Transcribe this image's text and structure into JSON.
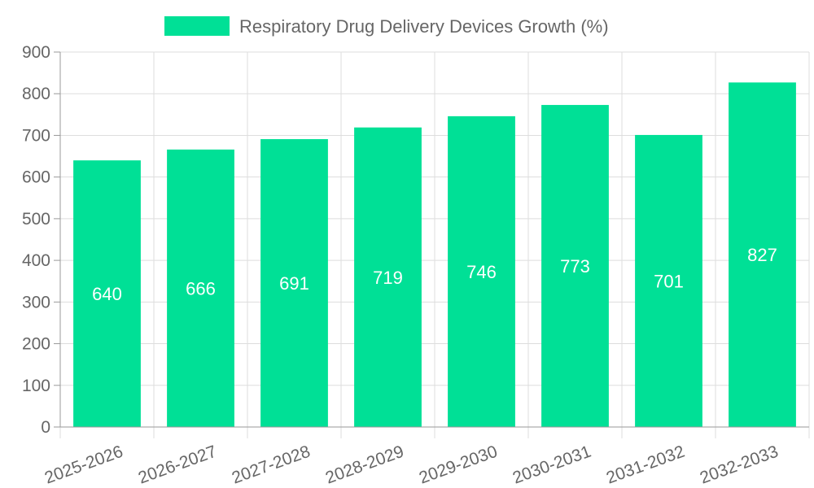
{
  "colors": {
    "bar": "#00e096",
    "grid": "#dddddd",
    "axis": "#999999",
    "text": "#666666",
    "label": "#ffffff"
  },
  "chart_data": {
    "type": "bar",
    "title": "",
    "legend": {
      "label": "Respiratory Drug Delivery Devices Growth (%)",
      "position": "top-center"
    },
    "categories": [
      "2025-2026",
      "2026-2027",
      "2027-2028",
      "2028-2029",
      "2029-2030",
      "2030-2031",
      "2031-2032",
      "2032-2033"
    ],
    "series": [
      {
        "name": "Respiratory Drug Delivery Devices Growth (%)",
        "values": [
          640,
          666,
          691,
          719,
          746,
          773,
          701,
          827
        ]
      }
    ],
    "data_labels": [
      "640",
      "666",
      "691",
      "719",
      "746",
      "773",
      "701",
      "827"
    ],
    "y_ticks": [
      0,
      100,
      200,
      300,
      400,
      500,
      600,
      700,
      800,
      900
    ],
    "ylim": [
      0,
      900
    ],
    "xlabel": "",
    "ylabel": "",
    "grid": true
  }
}
